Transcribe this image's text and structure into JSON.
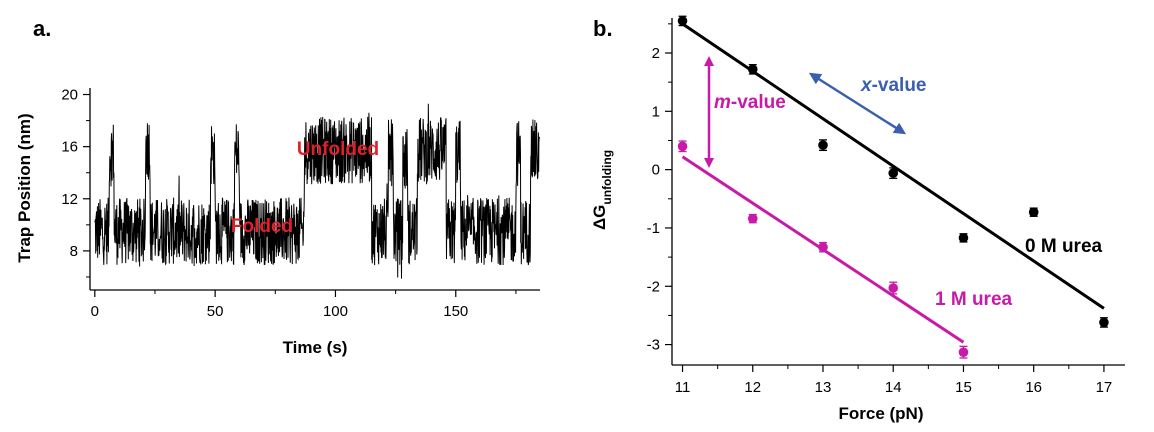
{
  "panel_a": {
    "label": "a.",
    "annotation_unfolded": "Unfolded",
    "annotation_folded": "Folded"
  },
  "panel_b": {
    "label": "b.",
    "ylabel_main": "ΔG",
    "ylabel_sub": "unfolding",
    "annotation_m_prefix": "m",
    "annotation_m_suffix": "-value",
    "annotation_x_prefix": "x",
    "annotation_x_suffix": "-value",
    "label_0M": "0 M urea",
    "label_1M": "1 M urea"
  },
  "colors": {
    "trace": "#000000",
    "annotation_red": "#e0202a",
    "magenta": "#c81aa8",
    "blue": "#3a5fae"
  },
  "chart_data": [
    {
      "type": "line",
      "title": "",
      "xlabel": "Time (s)",
      "ylabel": "Trap Position (nm)",
      "xlim": [
        -2,
        185
      ],
      "ylim": [
        5,
        20.5
      ],
      "xticks": [
        0,
        50,
        100,
        150
      ],
      "yticks": [
        8,
        12,
        16,
        20
      ],
      "states": [
        {
          "name": "Folded",
          "level_nm": 9.5
        },
        {
          "name": "Unfolded",
          "level_nm": 15.7
        }
      ],
      "segments": [
        [
          0,
          6,
          9.5
        ],
        [
          6,
          8,
          15.5
        ],
        [
          8,
          21,
          9.5
        ],
        [
          21,
          23,
          16
        ],
        [
          23,
          48,
          9.5
        ],
        [
          48,
          50,
          15.5
        ],
        [
          50,
          58,
          9.5
        ],
        [
          58,
          60,
          15.5
        ],
        [
          60,
          87,
          9.5
        ],
        [
          87,
          115,
          15.7
        ],
        [
          115,
          122,
          9.5
        ],
        [
          122,
          124,
          15.5
        ],
        [
          124,
          128,
          9.5
        ],
        [
          128,
          130,
          15
        ],
        [
          130,
          134,
          9.5
        ],
        [
          134,
          146,
          15.7
        ],
        [
          146,
          150,
          9.5
        ],
        [
          150,
          152,
          15.5
        ],
        [
          152,
          175,
          9.5
        ],
        [
          175,
          177,
          15.5
        ],
        [
          177,
          181,
          9.5
        ],
        [
          181,
          185,
          15.5
        ]
      ]
    },
    {
      "type": "scatter",
      "title": "",
      "xlabel": "Force (pN)",
      "ylabel": "ΔGunfolding",
      "xlim": [
        10.85,
        17.3
      ],
      "ylim": [
        -3.35,
        2.6
      ],
      "xticks": [
        11,
        12,
        13,
        14,
        15,
        16,
        17
      ],
      "yticks": [
        -3,
        -2,
        -1,
        0,
        1,
        2
      ],
      "series": [
        {
          "name": "0 M urea",
          "color": "#000000",
          "x": [
            11,
            12,
            13,
            14,
            15,
            16,
            17
          ],
          "y": [
            2.55,
            1.72,
            0.42,
            -0.06,
            -1.17,
            -0.73,
            -2.62
          ],
          "err": [
            0.08,
            0.08,
            0.09,
            0.09,
            0.07,
            0.07,
            0.08
          ],
          "fit": [
            [
              11,
              2.5
            ],
            [
              17,
              -2.38
            ]
          ]
        },
        {
          "name": "1 M urea",
          "color": "#c81aa8",
          "x": [
            11,
            12,
            13,
            14,
            15
          ],
          "y": [
            0.4,
            -0.84,
            -1.33,
            -2.03,
            -3.13
          ],
          "err": [
            0.09,
            0.07,
            0.08,
            0.1,
            0.1
          ],
          "fit": [
            [
              11,
              0.22
            ],
            [
              15,
              -2.96
            ]
          ]
        }
      ]
    }
  ]
}
